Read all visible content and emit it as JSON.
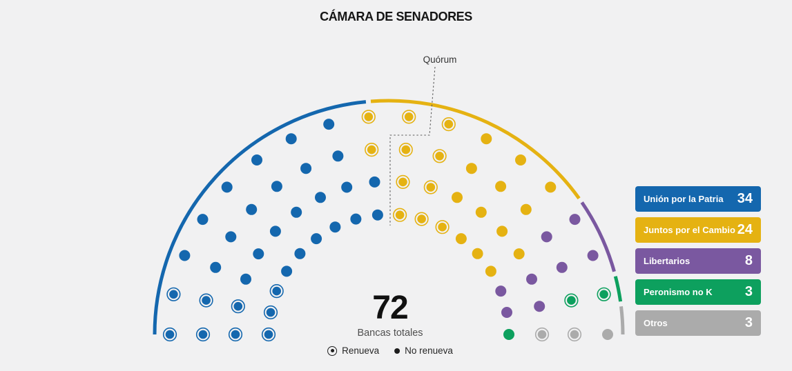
{
  "header": {
    "title": "CÁMARA DE SENADORES"
  },
  "annotations": {
    "quorum_label": "Quórum"
  },
  "totals": {
    "value": "72",
    "label": "Bancas totales"
  },
  "seat_legend": {
    "renueva": "Renueva",
    "no_renueva": "No renueva"
  },
  "chart_data": {
    "type": "parliament",
    "title": "CÁMARA DE SENADORES",
    "total_seats": 72,
    "rows": 4,
    "seats_per_row": 18,
    "quorum_seats_left_of_line": 37,
    "renewal_marker": {
      "ringed_dot": "Renueva",
      "solid_dot": "No renueva"
    },
    "parties": [
      {
        "name": "Unión por la Patria",
        "seats": 34,
        "renueva": 9,
        "color": "#1467ae"
      },
      {
        "name": "Juntos por el Cambio",
        "seats": 24,
        "renueva": 11,
        "color": "#e5b212"
      },
      {
        "name": "Libertarios",
        "seats": 8,
        "renueva": 0,
        "color": "#7a58a0"
      },
      {
        "name": "Peronismo no K",
        "seats": 3,
        "renueva": 2,
        "color": "#0da05e"
      },
      {
        "name": "Otros",
        "seats": 3,
        "renueva": 2,
        "color": "#ababab"
      }
    ]
  }
}
